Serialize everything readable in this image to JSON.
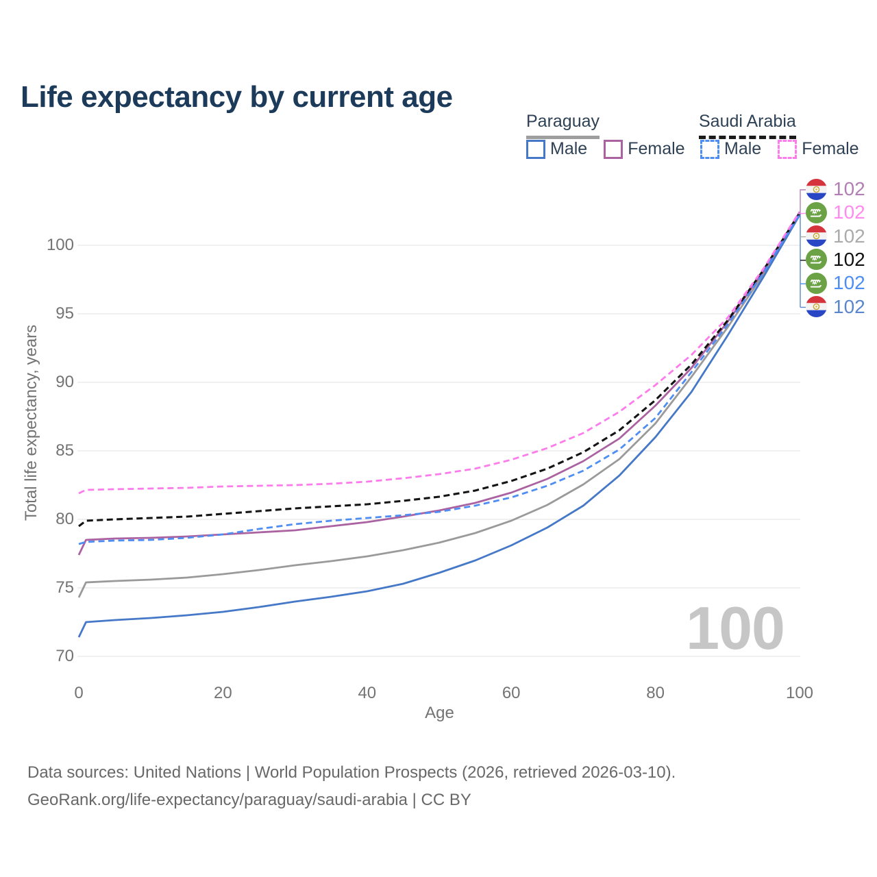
{
  "header": {
    "title": "Life expectancy by current age"
  },
  "legend": {
    "paraguay": {
      "label": "Paraguay",
      "male": "Male",
      "female": "Female"
    },
    "saudi_arabia": {
      "label": "Saudi Arabia",
      "male": "Male",
      "female": "Female"
    }
  },
  "watermark": "100",
  "footer": {
    "line1": "Data sources: United Nations | World Population Prospects (2026, retrieved 2026-03-10).",
    "line2": "GeoRank.org/life-expectancy/paraguay/saudi-arabia | CC BY"
  },
  "colors": {
    "title": "#1c3a5a",
    "legend_text": "#2f4154",
    "paraguay_underline": "#9e9e9e",
    "saudi_underline": "#1a1a1a",
    "tick_text": "#737373",
    "grid": "#e8e8e8",
    "watermark": "#c6c6c6",
    "footer_text": "#686868",
    "paraguay_male": "#4678c8",
    "paraguay_female": "#ab62a1",
    "paraguay_total": "#9a9a9a",
    "saudi_male": "#4e8df2",
    "saudi_female": "#fc7cec",
    "saudi_total": "#141414"
  },
  "chart_data": {
    "type": "line",
    "title": "Life expectancy by current age",
    "xlabel": "Age",
    "ylabel": "Total life expectancy, years",
    "xlim": [
      0,
      100
    ],
    "ylim": [
      70,
      102.5
    ],
    "xticks": [
      0,
      20,
      40,
      60,
      80,
      100
    ],
    "yticks": [
      70,
      75,
      80,
      85,
      90,
      95,
      100
    ],
    "grid": "horizontal",
    "legend_position": "top-right",
    "x": [
      0,
      1,
      5,
      10,
      15,
      20,
      25,
      30,
      35,
      40,
      45,
      50,
      55,
      60,
      65,
      70,
      75,
      80,
      85,
      90,
      95,
      100
    ],
    "series": [
      {
        "name": "Paraguay Total",
        "country": "paraguay",
        "sex": "all",
        "color": "#9a9a9a",
        "dash": false,
        "label_color": "#ababab",
        "label_slot": 2,
        "end_label": "102",
        "values": [
          74.3,
          75.4,
          75.5,
          75.6,
          75.75,
          76.0,
          76.3,
          76.65,
          76.95,
          77.3,
          77.75,
          78.3,
          79.0,
          79.9,
          81.05,
          82.55,
          84.4,
          87.0,
          90.4,
          94.0,
          97.9,
          102.3
        ]
      },
      {
        "name": "Paraguay Male",
        "country": "paraguay",
        "sex": "male",
        "color": "#4678c8",
        "dash": false,
        "label_color": "#5a86cd",
        "label_slot": 5,
        "end_label": "102",
        "values": [
          71.4,
          72.5,
          72.65,
          72.8,
          73.0,
          73.25,
          73.6,
          74.0,
          74.35,
          74.75,
          75.3,
          76.1,
          77.0,
          78.1,
          79.4,
          81.0,
          83.2,
          86.0,
          89.3,
          93.4,
          97.7,
          102.2
        ]
      },
      {
        "name": "Paraguay Female",
        "country": "paraguay",
        "sex": "female",
        "color": "#ab62a1",
        "dash": false,
        "label_color": "#b27fb5",
        "label_slot": 0,
        "end_label": "102",
        "values": [
          77.4,
          78.5,
          78.6,
          78.65,
          78.75,
          78.9,
          79.05,
          79.2,
          79.5,
          79.8,
          80.2,
          80.65,
          81.2,
          81.95,
          82.95,
          84.25,
          85.9,
          88.3,
          91.05,
          94.4,
          98.1,
          102.4
        ]
      },
      {
        "name": "Saudi Arabia Total",
        "country": "saudi_arabia",
        "sex": "all",
        "color": "#141414",
        "dash": true,
        "label_color": "#111111",
        "label_slot": 3,
        "end_label": "102",
        "values": [
          79.5,
          79.9,
          80.0,
          80.1,
          80.2,
          80.4,
          80.6,
          80.8,
          80.95,
          81.1,
          81.35,
          81.65,
          82.1,
          82.8,
          83.7,
          84.9,
          86.5,
          88.7,
          91.3,
          94.5,
          98.2,
          102.35
        ]
      },
      {
        "name": "Saudi Arabia Male",
        "country": "saudi_arabia",
        "sex": "male",
        "color": "#4e8df2",
        "dash": true,
        "label_color": "#4e8df2",
        "label_slot": 4,
        "end_label": "102",
        "values": [
          78.2,
          78.35,
          78.45,
          78.5,
          78.65,
          78.9,
          79.3,
          79.65,
          79.9,
          80.1,
          80.3,
          80.55,
          81.0,
          81.6,
          82.45,
          83.55,
          85.1,
          87.4,
          90.75,
          94.2,
          98.0,
          102.25
        ]
      },
      {
        "name": "Saudi Arabia Female",
        "country": "saudi_arabia",
        "sex": "female",
        "color": "#fc7cec",
        "dash": true,
        "label_color": "#ff8af0",
        "label_slot": 1,
        "end_label": "102",
        "values": [
          81.9,
          82.15,
          82.2,
          82.25,
          82.3,
          82.4,
          82.45,
          82.5,
          82.6,
          82.75,
          83.0,
          83.3,
          83.7,
          84.35,
          85.2,
          86.3,
          87.85,
          89.8,
          92.0,
          94.7,
          98.3,
          102.45
        ]
      }
    ]
  }
}
